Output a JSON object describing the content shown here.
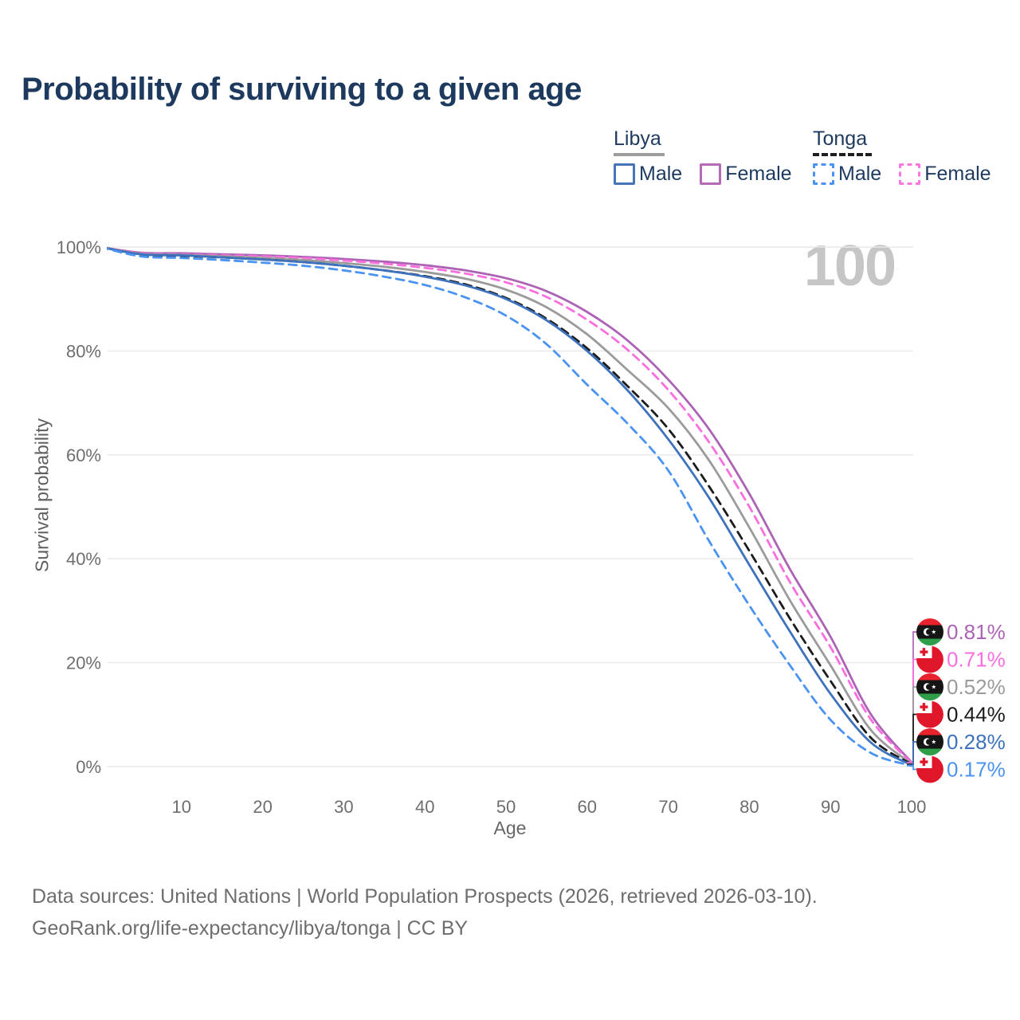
{
  "title": "Probability of surviving to a given age",
  "legend": {
    "groups": [
      {
        "label": "Libya",
        "underline_color": "#9d9d9d",
        "underline_style": "solid",
        "items": [
          {
            "label": "Male",
            "color": "#4674b6",
            "style": "solid"
          },
          {
            "label": "Female",
            "color": "#b46ab4",
            "style": "solid"
          }
        ]
      },
      {
        "label": "Tonga",
        "underline_color": "#1f1f1f",
        "underline_style": "dashed",
        "items": [
          {
            "label": "Male",
            "color": "#4b93f2",
            "style": "dashed"
          },
          {
            "label": "Female",
            "color": "#fb77df",
            "style": "dashed"
          }
        ]
      }
    ]
  },
  "chart_data": {
    "type": "line",
    "title": "Probability of surviving to a given age",
    "xlabel": "Age",
    "ylabel": "Survival probability",
    "xlim": [
      0,
      100
    ],
    "ylim": [
      0,
      100
    ],
    "grid": "horizontal",
    "legend_position": "top-right",
    "watermark": "100",
    "x_ticks": [
      10,
      20,
      30,
      40,
      50,
      60,
      70,
      80,
      90,
      100
    ],
    "y_ticks": [
      {
        "value": 0,
        "label": "0%"
      },
      {
        "value": 20,
        "label": "20%"
      },
      {
        "value": 40,
        "label": "40%"
      },
      {
        "value": 60,
        "label": "60%"
      },
      {
        "value": 80,
        "label": "80%"
      },
      {
        "value": 100,
        "label": "100%"
      }
    ],
    "ages": [
      0,
      5,
      10,
      15,
      20,
      25,
      30,
      35,
      40,
      45,
      50,
      55,
      60,
      65,
      70,
      75,
      80,
      85,
      90,
      95,
      100
    ],
    "series": [
      {
        "id": "libya-female",
        "country": "Libya",
        "sex": "Female",
        "flag": "libya",
        "color": "#ad63b5",
        "line_style": "solid",
        "end_label": "0.81%",
        "values": [
          100,
          98.9,
          98.8,
          98.6,
          98.4,
          98.1,
          97.7,
          97.2,
          96.5,
          95.5,
          94.0,
          91.5,
          87.5,
          82.0,
          74.5,
          65.0,
          52.5,
          38.0,
          25.0,
          10.0,
          0.81
        ]
      },
      {
        "id": "tonga-female",
        "country": "Tonga",
        "sex": "Female",
        "flag": "tonga",
        "color": "#fa6ede",
        "line_style": "dashed",
        "end_label": "0.71%",
        "values": [
          100,
          98.8,
          98.6,
          98.4,
          98.2,
          97.9,
          97.4,
          96.8,
          96.0,
          94.9,
          93.2,
          90.4,
          86.0,
          80.2,
          72.5,
          62.5,
          50.0,
          35.5,
          23.0,
          9.0,
          0.71
        ]
      },
      {
        "id": "libya-total",
        "country": "Libya",
        "sex": "Total",
        "flag": "libya",
        "color": "#9b9b9b",
        "line_style": "solid",
        "end_label": "0.52%",
        "values": [
          100,
          98.7,
          98.5,
          98.2,
          97.9,
          97.5,
          96.9,
          96.2,
          95.2,
          93.9,
          91.8,
          88.4,
          83.2,
          76.3,
          69.0,
          59.0,
          46.0,
          32.0,
          19.5,
          7.0,
          0.52
        ]
      },
      {
        "id": "tonga-total",
        "country": "Tonga",
        "sex": "Total",
        "flag": "tonga",
        "color": "#1c1c1c",
        "line_style": "dashed",
        "end_label": "0.44%",
        "values": [
          100,
          98.5,
          98.3,
          98.0,
          97.6,
          97.1,
          96.4,
          95.5,
          94.4,
          92.8,
          90.2,
          86.2,
          80.5,
          73.2,
          65.0,
          54.0,
          41.5,
          28.5,
          16.5,
          5.5,
          0.44
        ]
      },
      {
        "id": "libya-male",
        "country": "Libya",
        "sex": "Male",
        "flag": "libya",
        "color": "#3e72bd",
        "line_style": "solid",
        "end_label": "0.28%",
        "values": [
          100,
          98.6,
          98.4,
          98.0,
          97.6,
          97.1,
          96.4,
          95.5,
          94.3,
          92.6,
          90.0,
          85.9,
          80.0,
          72.4,
          63.0,
          51.8,
          38.8,
          26.0,
          14.0,
          4.6,
          0.28
        ]
      },
      {
        "id": "tonga-male",
        "country": "Tonga",
        "sex": "Male",
        "flag": "tonga",
        "color": "#4b93f0",
        "line_style": "dashed",
        "end_label": "0.17%",
        "values": [
          100,
          98.2,
          97.9,
          97.5,
          97.0,
          96.4,
          95.5,
          94.3,
          92.7,
          90.3,
          86.8,
          81.3,
          73.5,
          66.0,
          57.0,
          43.5,
          31.0,
          19.5,
          9.0,
          2.6,
          0.17
        ]
      }
    ]
  },
  "footer": {
    "line1": "Data sources: United Nations | World Population Prospects (2026, retrieved 2026-03-10).",
    "line2": "GeoRank.org/life-expectancy/libya/tonga | CC BY"
  }
}
